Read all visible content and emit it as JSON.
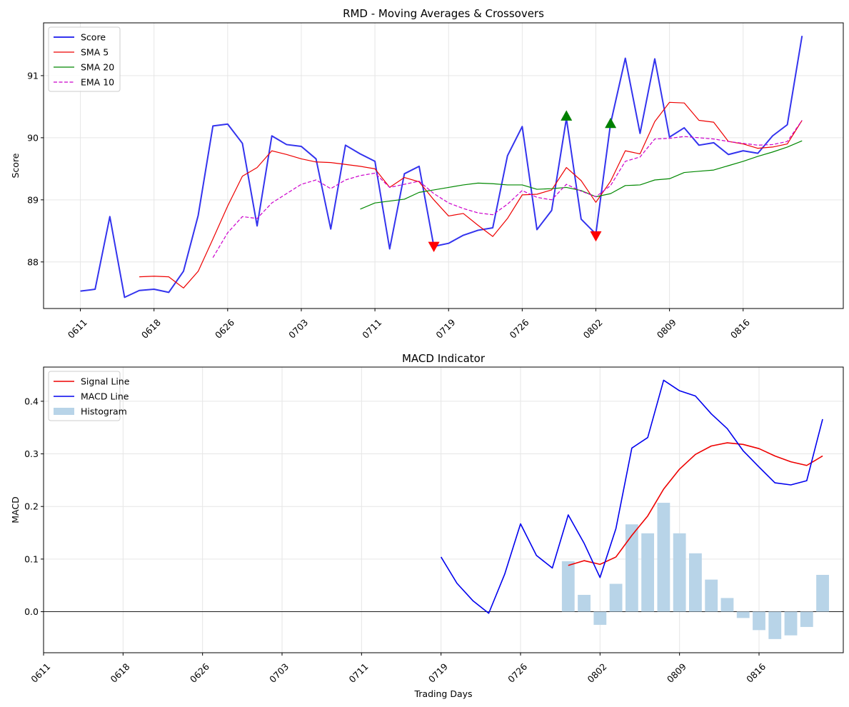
{
  "chart_data": [
    {
      "type": "line",
      "title": "RMD - Moving Averages & Crossovers",
      "xlabel": "",
      "ylabel": "Score",
      "ylim": [
        87.25,
        91.85
      ],
      "yticks": [
        88,
        89,
        90,
        91
      ],
      "xtick_labels": [
        "0611",
        "0618",
        "0626",
        "0703",
        "0711",
        "0719",
        "0726",
        "0802",
        "0809",
        "0816"
      ],
      "xtick_positions": [
        0,
        5,
        10,
        15,
        20,
        25,
        30,
        35,
        40,
        45
      ],
      "x_range": [
        -2.5,
        51.8
      ],
      "grid": true,
      "legend_position": "upper-left",
      "series": [
        {
          "name": "Score",
          "color": "#3333ee",
          "style": "solid",
          "width": 2,
          "start": 0,
          "values": [
            87.53,
            87.56,
            88.73,
            87.43,
            87.54,
            87.56,
            87.51,
            87.85,
            88.75,
            90.19,
            90.22,
            89.91,
            88.58,
            90.03,
            89.89,
            89.86,
            89.66,
            88.53,
            89.88,
            89.74,
            89.62,
            88.21,
            89.42,
            89.54,
            88.25,
            88.3,
            88.43,
            88.51,
            88.55,
            89.71,
            90.18,
            88.52,
            88.83,
            90.31,
            88.69,
            88.45,
            90.23,
            91.28,
            90.07,
            91.27,
            90.01,
            90.16,
            89.88,
            89.92,
            89.73,
            89.79,
            89.75,
            90.03,
            90.21,
            91.64
          ]
        },
        {
          "name": "SMA 5",
          "color": "#ee0000",
          "style": "solid",
          "width": 1.2,
          "start": 4,
          "values": [
            87.76,
            87.77,
            87.76,
            87.58,
            87.85,
            88.37,
            88.9,
            89.38,
            89.52,
            89.79,
            89.73,
            89.66,
            89.61,
            89.6,
            89.57,
            89.54,
            89.5,
            89.2,
            89.36,
            89.29,
            89.0,
            88.74,
            88.78,
            88.59,
            88.41,
            88.7,
            89.08,
            89.09,
            89.16,
            89.52,
            89.31,
            88.96,
            89.3,
            89.79,
            89.74,
            90.26,
            90.57,
            90.56,
            90.28,
            90.25,
            89.94,
            89.9,
            89.83,
            89.85,
            89.9,
            90.28
          ]
        },
        {
          "name": "SMA 20",
          "color": "#008800",
          "style": "solid",
          "width": 1.2,
          "start": 19,
          "values": [
            88.85,
            88.95,
            88.98,
            89.01,
            89.12,
            89.16,
            89.2,
            89.24,
            89.27,
            89.26,
            89.24,
            89.24,
            89.17,
            89.18,
            89.2,
            89.15,
            89.05,
            89.1,
            89.23,
            89.24,
            89.32,
            89.34,
            89.44,
            89.46,
            89.48,
            89.55,
            89.62,
            89.7,
            89.77,
            89.85,
            89.95
          ]
        },
        {
          "name": "EMA 10",
          "color": "#cc00cc",
          "style": "dashed",
          "width": 1.2,
          "start": 9,
          "values": [
            88.07,
            88.47,
            88.73,
            88.7,
            88.95,
            89.1,
            89.25,
            89.32,
            89.18,
            89.32,
            89.39,
            89.43,
            89.2,
            89.25,
            89.3,
            89.1,
            88.95,
            88.86,
            88.79,
            88.76,
            88.93,
            89.15,
            89.04,
            89.0,
            89.25,
            89.14,
            89.05,
            89.23,
            89.62,
            89.69,
            89.98,
            89.99,
            90.02,
            90.0,
            89.98,
            89.94,
            89.91,
            89.88,
            89.89,
            89.94,
            90.28
          ]
        }
      ],
      "markers": [
        {
          "type": "down",
          "color": "#ff0000",
          "x": 24,
          "y": 88.25
        },
        {
          "type": "up",
          "color": "#008000",
          "x": 33,
          "y": 90.35
        },
        {
          "type": "down",
          "color": "#ff0000",
          "x": 35,
          "y": 88.42
        },
        {
          "type": "up",
          "color": "#008000",
          "x": 36,
          "y": 90.23
        }
      ]
    },
    {
      "type": "line",
      "title": "MACD Indicator",
      "xlabel": "Trading Days",
      "ylabel": "MACD",
      "ylim": [
        -0.078,
        0.465
      ],
      "yticks": [
        0.0,
        0.1,
        0.2,
        0.3,
        0.4
      ],
      "ytick_labels": [
        "0.0",
        "0.1",
        "0.2",
        "0.3",
        "0.4"
      ],
      "xtick_labels": [
        "0611",
        "0618",
        "0626",
        "0703",
        "0711",
        "0719",
        "0726",
        "0802",
        "0809",
        "0816"
      ],
      "xtick_positions": [
        0,
        5,
        10,
        15,
        20,
        25,
        30,
        35,
        40,
        45
      ],
      "x_range": [
        0,
        50.3
      ],
      "grid": true,
      "legend_position": "upper-left",
      "zero_line": true,
      "series": [
        {
          "name": "Signal Line",
          "color": "#ee0000",
          "style": "solid",
          "width": 1.6,
          "start": 33,
          "values": [
            0.088,
            0.097,
            0.09,
            0.104,
            0.145,
            0.182,
            0.233,
            0.271,
            0.299,
            0.315,
            0.321,
            0.318,
            0.31,
            0.296,
            0.285,
            0.278,
            0.296
          ]
        },
        {
          "name": "MACD Line",
          "color": "#0000ee",
          "style": "solid",
          "width": 1.6,
          "start": 25,
          "values": [
            0.104,
            0.054,
            0.021,
            -0.003,
            0.071,
            0.167,
            0.107,
            0.083,
            0.184,
            0.13,
            0.065,
            0.158,
            0.311,
            0.331,
            0.44,
            0.42,
            0.41,
            0.376,
            0.348,
            0.306,
            0.275,
            0.245,
            0.241,
            0.249,
            0.366
          ]
        },
        {
          "name": "Histogram",
          "kind": "bar",
          "color": "#b8d4e8",
          "start": 33,
          "values": [
            0.096,
            0.032,
            -0.025,
            0.053,
            0.166,
            0.149,
            0.207,
            0.149,
            0.111,
            0.061,
            0.026,
            -0.012,
            -0.035,
            -0.052,
            -0.045,
            -0.029,
            0.07
          ]
        }
      ]
    }
  ]
}
